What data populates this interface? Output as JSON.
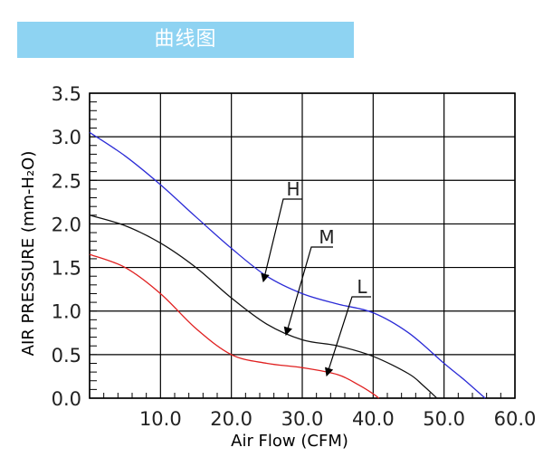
{
  "header": {
    "title": "曲线图"
  },
  "chart_data": {
    "type": "line",
    "title": "",
    "xlabel": "Air Flow (CFM)",
    "ylabel": "AIR PRESSURE (mm-H₂O)",
    "xlim": [
      0,
      60
    ],
    "ylim": [
      0,
      3.5
    ],
    "x_ticks": [
      "10.0",
      "20.0",
      "30.0",
      "40.0",
      "50.0",
      "60.0"
    ],
    "y_ticks": [
      "0.0",
      "0.5",
      "1.0",
      "1.5",
      "2.0",
      "2.5",
      "3.0",
      "3.5"
    ],
    "grid": true,
    "series": [
      {
        "name": "H",
        "color": "#2b2bd6",
        "x": [
          0,
          5,
          10,
          15,
          20,
          25,
          30,
          35,
          40,
          45,
          50,
          53,
          55.8
        ],
        "y": [
          3.05,
          2.78,
          2.45,
          2.08,
          1.72,
          1.4,
          1.2,
          1.08,
          0.98,
          0.75,
          0.4,
          0.2,
          0.0
        ]
      },
      {
        "name": "M",
        "color": "#111111",
        "x": [
          0,
          5,
          10,
          15,
          20,
          25,
          30,
          35,
          40,
          45,
          47,
          49
        ],
        "y": [
          2.1,
          1.98,
          1.78,
          1.5,
          1.15,
          0.85,
          0.67,
          0.6,
          0.48,
          0.28,
          0.15,
          0.0
        ]
      },
      {
        "name": "L",
        "color": "#e02020",
        "x": [
          0,
          5,
          10,
          15,
          20,
          25,
          30,
          35,
          38,
          40,
          40.8
        ],
        "y": [
          1.65,
          1.5,
          1.2,
          0.8,
          0.5,
          0.4,
          0.35,
          0.27,
          0.15,
          0.05,
          0.0
        ]
      }
    ]
  }
}
